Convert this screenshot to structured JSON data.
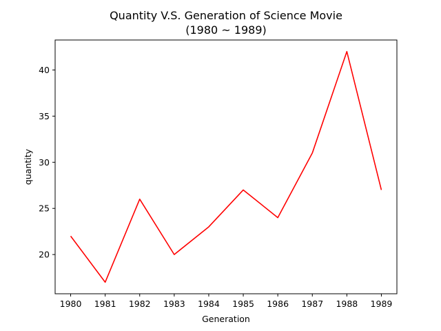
{
  "chart_data": {
    "type": "line",
    "title_line1": "Quantity V.S. Generation of Science Movie",
    "title_line2": "(1980 ~ 1989)",
    "xlabel": "Generation",
    "ylabel": "quantity",
    "x": [
      1980,
      1981,
      1982,
      1983,
      1984,
      1985,
      1986,
      1987,
      1988,
      1989
    ],
    "series": [
      {
        "values": [
          22,
          17,
          26,
          20,
          23,
          27,
          24,
          31,
          42,
          27
        ],
        "color": "#ff0000"
      }
    ],
    "xlim": [
      1979.55,
      1989.45
    ],
    "ylim": [
      15.75,
      43.25
    ],
    "yticks": [
      20,
      25,
      30,
      35,
      40
    ],
    "grid": false,
    "legend": "none"
  }
}
